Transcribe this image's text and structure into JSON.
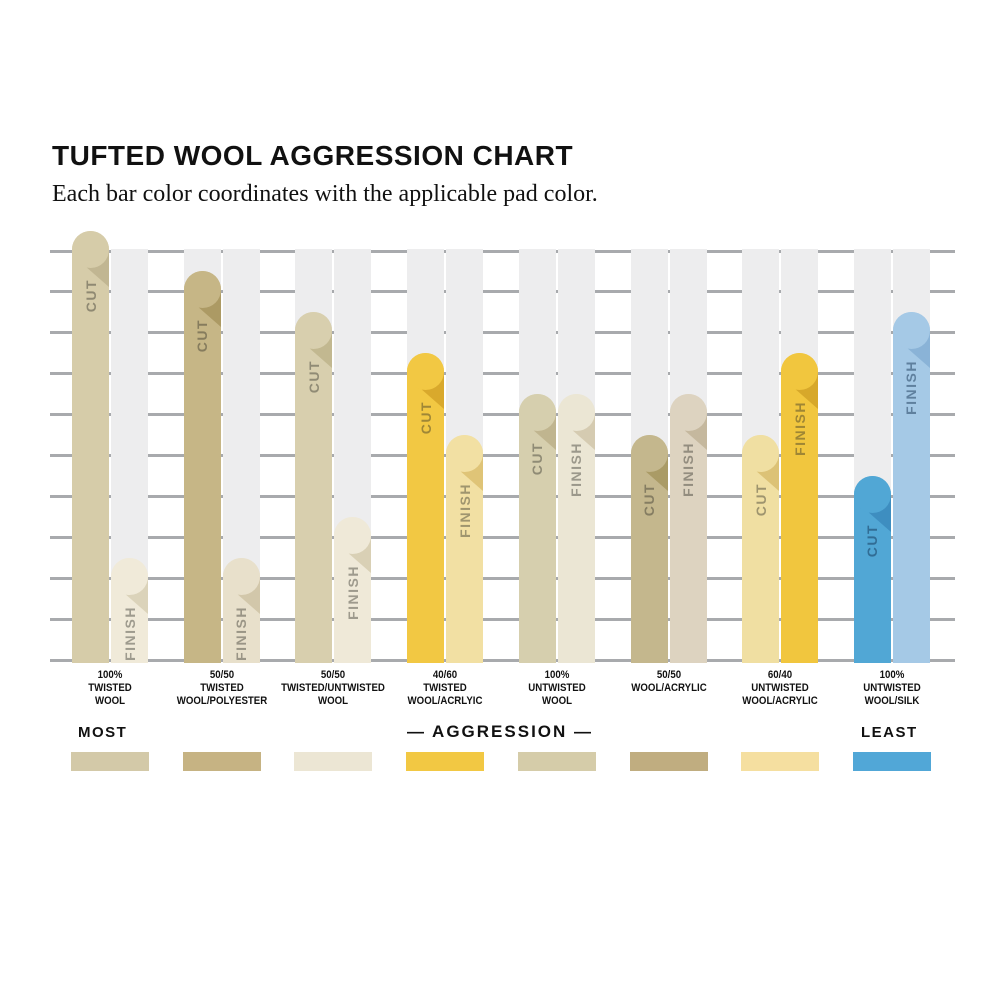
{
  "header": {
    "title": "TUFTED WOOL AGGRESSION CHART",
    "subtitle": "Each bar color coordinates with the applicable pad color."
  },
  "axis_labels": {
    "most": "MOST",
    "least": "LEAST",
    "center": "— AGGRESSION —"
  },
  "bar_text": {
    "cut": "CUT",
    "finish": "FINISH"
  },
  "grid": {
    "color": "#a8aaad",
    "band_color": "#ededee",
    "intervals": 10
  },
  "groups": [
    {
      "label_lines": [
        "100%",
        "TWISTED",
        "WOOL"
      ],
      "swatch": "#d3c9a8",
      "cut": {
        "value": 10.5,
        "color": "#d6cca9",
        "fold": "#c1b692"
      },
      "finish": {
        "value": 2.5,
        "color": "#f0ead9",
        "fold": "#dbd3ba"
      }
    },
    {
      "label_lines": [
        "50/50",
        "TWISTED",
        "WOOL/POLYESTER"
      ],
      "swatch": "#c6b383",
      "cut": {
        "value": 9.5,
        "color": "#c6b686",
        "fold": "#ac9a64"
      },
      "finish": {
        "value": 2.5,
        "color": "#e8e0cb",
        "fold": "#d2c7aa"
      }
    },
    {
      "label_lines": [
        "50/50",
        "TWISTED/UNTWISTED",
        "WOOL"
      ],
      "swatch": "#ece6d4",
      "cut": {
        "value": 8.5,
        "color": "#d8cfae",
        "fold": "#c2b890"
      },
      "finish": {
        "value": 3.5,
        "color": "#efe9d8",
        "fold": "#d9d0b5"
      }
    },
    {
      "label_lines": [
        "40/60",
        "TWISTED",
        "WOOL/ACRLYIC"
      ],
      "swatch": "#f2c843",
      "cut": {
        "value": 7.5,
        "color": "#f2c843",
        "fold": "#d9a92c"
      },
      "finish": {
        "value": 5.5,
        "color": "#f2e0a3",
        "fold": "#dfc477"
      }
    },
    {
      "label_lines": [
        "100%",
        "UNTWISTED",
        "WOOL"
      ],
      "swatch": "#d5cca9",
      "cut": {
        "value": 6.5,
        "color": "#d6cfae",
        "fold": "#c0b58f"
      },
      "finish": {
        "value": 6.5,
        "color": "#ebe6d4",
        "fold": "#d5cbb1"
      }
    },
    {
      "label_lines": [
        "50/50",
        "WOOL/ACRYLIC"
      ],
      "swatch": "#c0ad80",
      "cut": {
        "value": 5.5,
        "color": "#c4b78d",
        "fold": "#aa9b66"
      },
      "finish": {
        "value": 6.5,
        "color": "#ddd3c0",
        "fold": "#c5b89e"
      }
    },
    {
      "label_lines": [
        "60/40",
        "UNTWISTED",
        "WOOL/ACRYLIC"
      ],
      "swatch": "#f5dfa0",
      "cut": {
        "value": 5.5,
        "color": "#f0dfa2",
        "fold": "#dcc276"
      },
      "finish": {
        "value": 7.5,
        "color": "#f1c63e",
        "fold": "#d7a82a"
      }
    },
    {
      "label_lines": [
        "100%",
        "UNTWISTED",
        "WOOL/SILK"
      ],
      "swatch": "#51a7d7",
      "cut": {
        "value": 4.5,
        "color": "#51a7d5",
        "fold": "#3e8ec0"
      },
      "finish": {
        "value": 8.5,
        "color": "#a5c9e6",
        "fold": "#8ab3d7"
      }
    }
  ],
  "chart_data": {
    "type": "bar",
    "title": "TUFTED WOOL AGGRESSION CHART",
    "subtitle": "Each bar color coordinates with the applicable pad color.",
    "categories": [
      "100% TWISTED WOOL",
      "50/50 TWISTED WOOL/POLYESTER",
      "50/50 TWISTED/UNTWISTED WOOL",
      "40/60 TWISTED WOOL/ACRLYIC",
      "100% UNTWISTED WOOL",
      "50/50 WOOL/ACRYLIC",
      "60/40 UNTWISTED WOOL/ACRYLIC",
      "100% UNTWISTED WOOL/SILK"
    ],
    "series": [
      {
        "name": "CUT",
        "values": [
          10.5,
          9.5,
          8.5,
          7.5,
          6.5,
          5.5,
          5.5,
          4.5
        ]
      },
      {
        "name": "FINISH",
        "values": [
          2.5,
          2.5,
          3.5,
          5.5,
          6.5,
          6.5,
          7.5,
          8.5
        ]
      }
    ],
    "xlabel": "AGGRESSION (MOST → LEAST)",
    "ylabel": "",
    "ylim": [
      0,
      10
    ],
    "grid": "horizontal lines only, bars overlay light-gray column bands",
    "legend_position": "labels written vertically inside each bar"
  }
}
